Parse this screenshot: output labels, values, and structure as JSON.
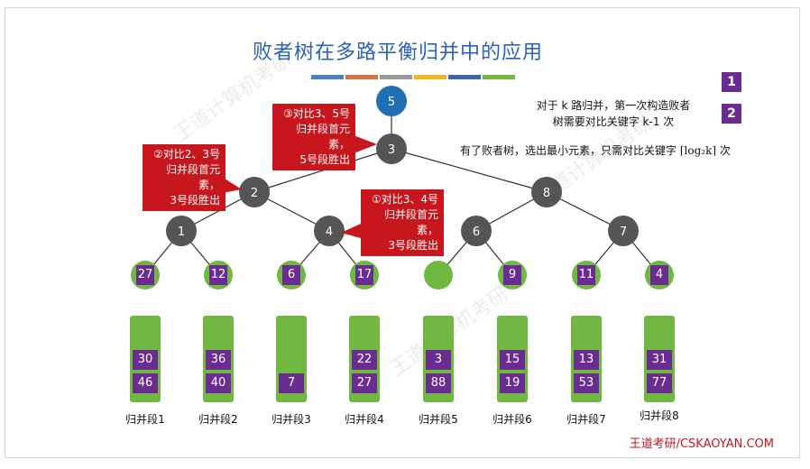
{
  "title": "败者树在多路平衡归并中的应用",
  "stripe_colors": [
    "#4a7fc0",
    "#e1713a",
    "#9a9a9a",
    "#f2b91e",
    "#3a66b0",
    "#71b843"
  ],
  "badges": [
    "1",
    "2"
  ],
  "notes": {
    "note1_line1": "对于 k 路归并，第一次构造败者",
    "note1_line2": "树需要对比关键字 k-1 次",
    "note2_prefix": "有了败者树，选出最小元素，只需对比关键字",
    "note2_formula": "⌈log₂k⌉",
    "note2_suffix": "次"
  },
  "tree": {
    "winner": "5",
    "internal": [
      "3",
      "2",
      "8",
      "1",
      "4",
      "6",
      "7"
    ]
  },
  "callouts": {
    "c3": [
      "③对比3、5号",
      "归并段首元素，",
      "5号段胜出"
    ],
    "c2": [
      "②对比2、3号",
      "归并段首元素，",
      "3号段胜出"
    ],
    "c1": [
      "①对比3、4号",
      "归并段首元素，",
      "3号段胜出"
    ]
  },
  "leaves": [
    "27",
    "12",
    "6",
    "17",
    "",
    "9",
    "11",
    "4"
  ],
  "runs": [
    {
      "label": "归并段1",
      "values": [
        "30",
        "46"
      ]
    },
    {
      "label": "归并段2",
      "values": [
        "36",
        "40"
      ]
    },
    {
      "label": "归并段3",
      "values": [
        "",
        "7"
      ]
    },
    {
      "label": "归并段4",
      "values": [
        "22",
        "27"
      ]
    },
    {
      "label": "归并段5",
      "values": [
        "3",
        "88"
      ]
    },
    {
      "label": "归并段6",
      "values": [
        "15",
        "19"
      ]
    },
    {
      "label": "归并段7",
      "values": [
        "13",
        "53"
      ]
    },
    {
      "label": "归并段8",
      "values": [
        "31",
        "77"
      ]
    }
  ],
  "footer": "王道考研/CSKAOYAN.COM"
}
